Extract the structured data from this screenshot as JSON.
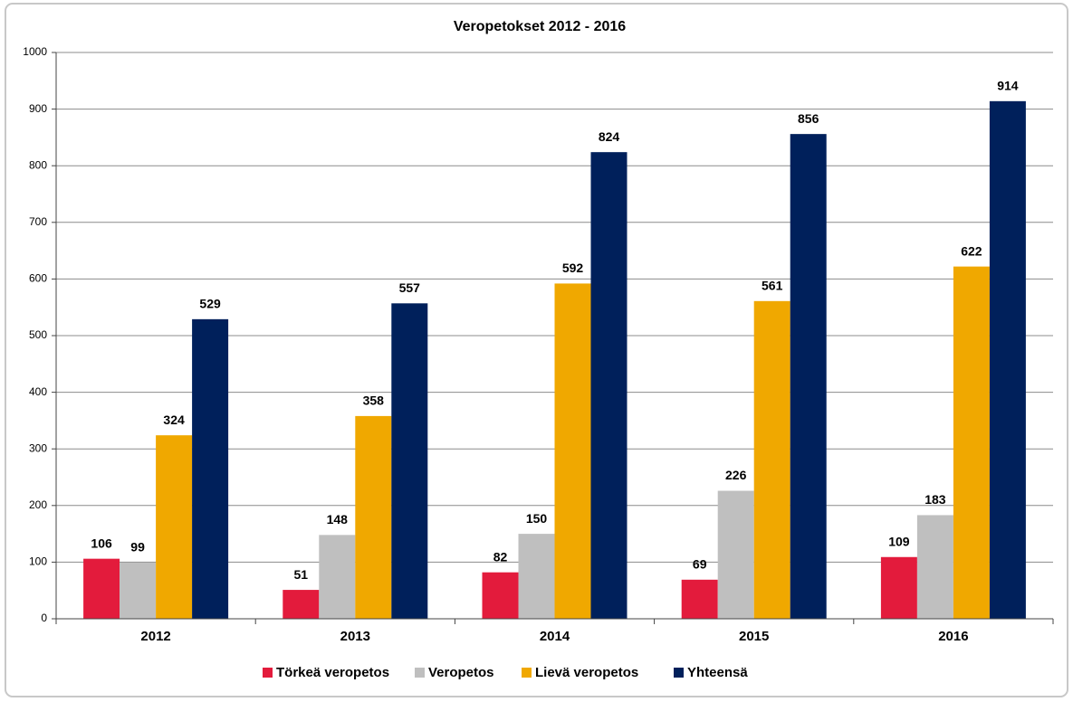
{
  "chart_data": {
    "type": "bar",
    "title": "Veropetokset 2012 - 2016",
    "categories": [
      "2012",
      "2013",
      "2014",
      "2015",
      "2016"
    ],
    "series": [
      {
        "name": "Törkeä veropetos",
        "color": "#e31b3c",
        "values": [
          106,
          51,
          82,
          69,
          109
        ]
      },
      {
        "name": "Veropetos",
        "color": "#bfbfbf",
        "values": [
          99,
          148,
          150,
          226,
          183
        ]
      },
      {
        "name": "Lievä veropetos",
        "color": "#f0a800",
        "values": [
          324,
          358,
          592,
          561,
          622
        ]
      },
      {
        "name": "Yhteensä",
        "color": "#00205b",
        "values": [
          529,
          557,
          824,
          856,
          914
        ]
      }
    ],
    "ylim": [
      0,
      1000
    ],
    "yticks": [
      0,
      100,
      200,
      300,
      400,
      500,
      600,
      700,
      800,
      900,
      1000
    ],
    "grid": true,
    "legend": "bottom"
  }
}
